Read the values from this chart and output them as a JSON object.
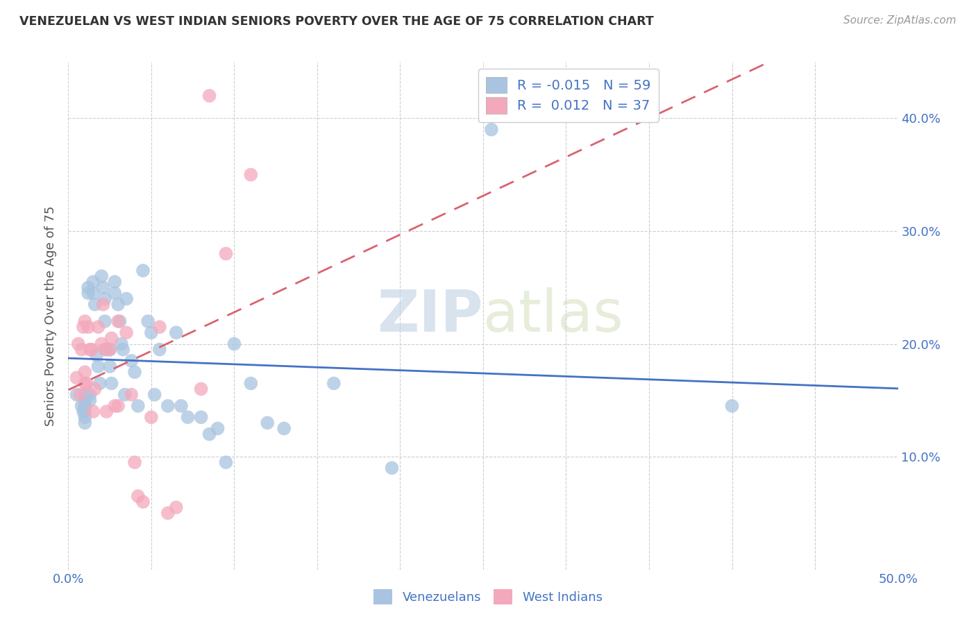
{
  "title": "VENEZUELAN VS WEST INDIAN SENIORS POVERTY OVER THE AGE OF 75 CORRELATION CHART",
  "source": "Source: ZipAtlas.com",
  "ylabel": "Seniors Poverty Over the Age of 75",
  "xlim": [
    0.0,
    0.5
  ],
  "ylim": [
    0.0,
    0.45
  ],
  "xticks": [
    0.0,
    0.05,
    0.1,
    0.15,
    0.2,
    0.25,
    0.3,
    0.35,
    0.4,
    0.45,
    0.5
  ],
  "yticks": [
    0.0,
    0.1,
    0.2,
    0.3,
    0.4
  ],
  "ytick_labels": [
    "",
    "10.0%",
    "20.0%",
    "30.0%",
    "40.0%"
  ],
  "grid_color": "#c8c8c8",
  "blue_color": "#a8c4e0",
  "pink_color": "#f4a8bc",
  "blue_line_color": "#4472c4",
  "pink_line_color": "#d9636f",
  "blue_r": -0.015,
  "blue_n": 59,
  "pink_r": 0.012,
  "pink_n": 37,
  "watermark_zip": "ZIP",
  "watermark_atlas": "atlas",
  "legend_labels": [
    "Venezuelans",
    "West Indians"
  ],
  "venezuelan_x": [
    0.005,
    0.008,
    0.009,
    0.01,
    0.01,
    0.01,
    0.01,
    0.01,
    0.01,
    0.012,
    0.012,
    0.013,
    0.013,
    0.015,
    0.015,
    0.016,
    0.017,
    0.018,
    0.019,
    0.02,
    0.021,
    0.022,
    0.022,
    0.023,
    0.025,
    0.025,
    0.026,
    0.028,
    0.028,
    0.03,
    0.031,
    0.032,
    0.033,
    0.034,
    0.035,
    0.038,
    0.04,
    0.042,
    0.045,
    0.048,
    0.05,
    0.052,
    0.055,
    0.06,
    0.065,
    0.068,
    0.072,
    0.08,
    0.085,
    0.09,
    0.095,
    0.1,
    0.11,
    0.12,
    0.13,
    0.16,
    0.195,
    0.255,
    0.4
  ],
  "venezuelan_y": [
    0.155,
    0.145,
    0.14,
    0.155,
    0.15,
    0.145,
    0.14,
    0.135,
    0.13,
    0.25,
    0.245,
    0.155,
    0.15,
    0.255,
    0.245,
    0.235,
    0.19,
    0.18,
    0.165,
    0.26,
    0.25,
    0.24,
    0.22,
    0.195,
    0.195,
    0.18,
    0.165,
    0.255,
    0.245,
    0.235,
    0.22,
    0.2,
    0.195,
    0.155,
    0.24,
    0.185,
    0.175,
    0.145,
    0.265,
    0.22,
    0.21,
    0.155,
    0.195,
    0.145,
    0.21,
    0.145,
    0.135,
    0.135,
    0.12,
    0.125,
    0.095,
    0.2,
    0.165,
    0.13,
    0.125,
    0.165,
    0.09,
    0.39,
    0.145
  ],
  "westindian_x": [
    0.005,
    0.006,
    0.007,
    0.008,
    0.009,
    0.01,
    0.01,
    0.01,
    0.011,
    0.012,
    0.013,
    0.014,
    0.015,
    0.016,
    0.018,
    0.02,
    0.021,
    0.022,
    0.023,
    0.025,
    0.026,
    0.028,
    0.03,
    0.03,
    0.035,
    0.038,
    0.04,
    0.042,
    0.045,
    0.05,
    0.055,
    0.06,
    0.065,
    0.08,
    0.085,
    0.095,
    0.11
  ],
  "westindian_y": [
    0.17,
    0.2,
    0.155,
    0.195,
    0.215,
    0.22,
    0.175,
    0.165,
    0.165,
    0.215,
    0.195,
    0.195,
    0.14,
    0.16,
    0.215,
    0.2,
    0.235,
    0.195,
    0.14,
    0.195,
    0.205,
    0.145,
    0.145,
    0.22,
    0.21,
    0.155,
    0.095,
    0.065,
    0.06,
    0.135,
    0.215,
    0.05,
    0.055,
    0.16,
    0.42,
    0.28,
    0.35
  ]
}
